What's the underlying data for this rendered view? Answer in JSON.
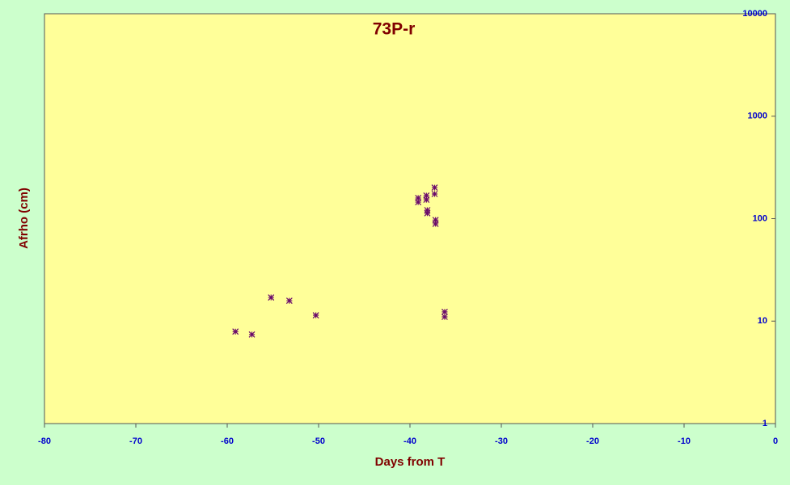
{
  "chart_data": {
    "type": "scatter",
    "title": "73P-r",
    "x_label": "Days from T",
    "y_label": "Afrho (cm)",
    "x": [
      -59.1,
      -57.3,
      -55.2,
      -53.2,
      -50.3,
      -39.1,
      -39.1,
      -38.2,
      -38.2,
      -38.1,
      -38.1,
      -37.3,
      -37.3,
      -37.2,
      -37.2,
      -36.2,
      -36.2
    ],
    "values": [
      7.9,
      7.4,
      17.0,
      15.8,
      11.4,
      159,
      145,
      168,
      153,
      121,
      113,
      201,
      174,
      97,
      89,
      12.3,
      11.0
    ],
    "color": "#6a0a6a",
    "xlim": [
      -80,
      0
    ],
    "xticks": [
      -80,
      -70,
      -60,
      -50,
      -40,
      -30,
      -20,
      -10,
      0
    ],
    "ylim": [
      1,
      10000
    ],
    "yticks": [
      1,
      10,
      100,
      1000,
      10000
    ],
    "log_scale": true
  }
}
